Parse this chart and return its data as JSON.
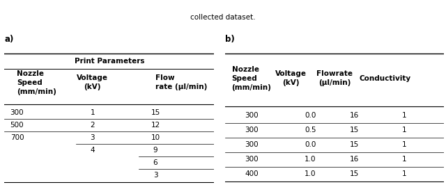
{
  "caption_text": "collected dataset.",
  "panel_a_label": "a)",
  "panel_b_label": "b)",
  "table_a": {
    "title": "Print Parameters",
    "col_headers": [
      "Nozzle\nSpeed\n(mm/min)",
      "Voltage\n(kV)",
      "Flow\nrate (µl/min)"
    ],
    "rows": [
      [
        "300",
        "1",
        "15"
      ],
      [
        "500",
        "2",
        "12"
      ],
      [
        "700",
        "3",
        "10"
      ],
      [
        "",
        "4",
        "9"
      ],
      [
        "",
        "",
        "6"
      ],
      [
        "",
        "",
        "3"
      ]
    ]
  },
  "table_b": {
    "col_headers": [
      "Nozzle\nSpeed\n(mm/min)",
      "Voltage\n(kV)",
      "Flowrate\n(µl/min)",
      "Conductivity"
    ],
    "rows": [
      [
        "300",
        "0.0",
        "16",
        "1"
      ],
      [
        "300",
        "0.5",
        "15",
        "1"
      ],
      [
        "300",
        "0.0",
        "15",
        "1"
      ],
      [
        "300",
        "1.0",
        "16",
        "1"
      ],
      [
        "400",
        "1.0",
        "15",
        "1"
      ]
    ]
  },
  "bg_color": "#ffffff",
  "text_color": "#000000",
  "font_size": 7.5
}
